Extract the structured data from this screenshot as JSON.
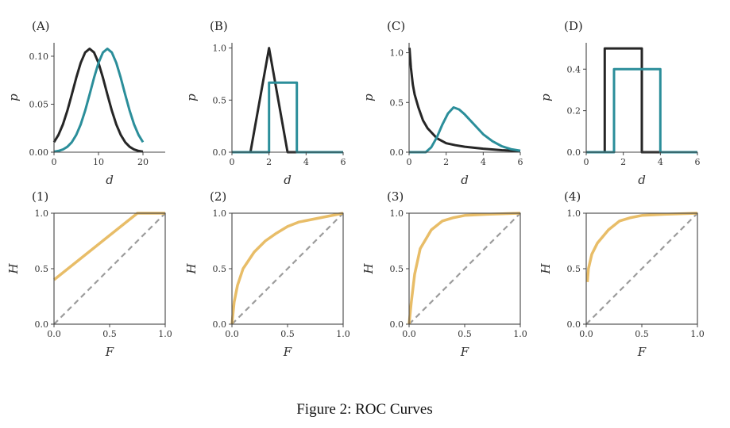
{
  "caption": "Figure 2: ROC Curves",
  "colors": {
    "noise": "#262626",
    "signal": "#2b8e9a",
    "roc": "#e5b658",
    "chance": "#9c9c9c"
  },
  "chart_data": [
    {
      "panel": "(A)",
      "type": "line",
      "xlabel": "d",
      "ylabel": "p",
      "xlim": [
        0,
        25
      ],
      "ylim": [
        0,
        0.114
      ],
      "xticks": [
        {
          "v": 0,
          "l": "0"
        },
        {
          "v": 10,
          "l": "10"
        },
        {
          "v": 20,
          "l": "20"
        }
      ],
      "yticks": [
        {
          "v": 0,
          "l": "0.00"
        },
        {
          "v": 0.05,
          "l": "0.05"
        },
        {
          "v": 0.1,
          "l": "0.10"
        }
      ],
      "series": [
        {
          "role": "noise",
          "points": [
            [
              0,
              0.0104
            ],
            [
              1,
              0.018
            ],
            [
              2,
              0.0289
            ],
            [
              3,
              0.0433
            ],
            [
              4,
              0.0601
            ],
            [
              5,
              0.0776
            ],
            [
              6,
              0.0931
            ],
            [
              7,
              0.1039
            ],
            [
              8,
              0.1078
            ],
            [
              9,
              0.1039
            ],
            [
              10,
              0.0931
            ],
            [
              11,
              0.0776
            ],
            [
              12,
              0.0601
            ],
            [
              13,
              0.0433
            ],
            [
              14,
              0.0289
            ],
            [
              15,
              0.018
            ],
            [
              16,
              0.0104
            ],
            [
              17,
              0.0056
            ],
            [
              18,
              0.0028
            ],
            [
              19,
              0.0013
            ],
            [
              20,
              0.0006
            ]
          ]
        },
        {
          "role": "signal",
          "points": [
            [
              0,
              0.0006
            ],
            [
              1,
              0.0013
            ],
            [
              2,
              0.0028
            ],
            [
              3,
              0.0056
            ],
            [
              4,
              0.0104
            ],
            [
              5,
              0.018
            ],
            [
              6,
              0.0289
            ],
            [
              7,
              0.0433
            ],
            [
              8,
              0.0601
            ],
            [
              9,
              0.0776
            ],
            [
              10,
              0.0931
            ],
            [
              11,
              0.1039
            ],
            [
              12,
              0.1078
            ],
            [
              13,
              0.1039
            ],
            [
              14,
              0.0931
            ],
            [
              15,
              0.0776
            ],
            [
              16,
              0.0601
            ],
            [
              17,
              0.0433
            ],
            [
              18,
              0.0289
            ],
            [
              19,
              0.018
            ],
            [
              20,
              0.0104
            ]
          ]
        }
      ]
    },
    {
      "panel": "(B)",
      "type": "line",
      "xlabel": "d",
      "ylabel": "p",
      "xlim": [
        0,
        6
      ],
      "ylim": [
        0,
        1.05
      ],
      "xticks": [
        {
          "v": 0,
          "l": "0"
        },
        {
          "v": 2,
          "l": "2"
        },
        {
          "v": 4,
          "l": "4"
        },
        {
          "v": 6,
          "l": "6"
        }
      ],
      "yticks": [
        {
          "v": 0,
          "l": "0.0"
        },
        {
          "v": 0.5,
          "l": "0.5"
        },
        {
          "v": 1,
          "l": "1.0"
        }
      ],
      "series": [
        {
          "role": "noise",
          "points": [
            [
              1,
              0
            ],
            [
              2,
              1
            ],
            [
              3,
              0
            ],
            [
              3.5,
              0
            ]
          ]
        },
        {
          "role": "signal",
          "points": [
            [
              0,
              0
            ],
            [
              2,
              0
            ],
            [
              2,
              0.667
            ],
            [
              3.5,
              0.667
            ],
            [
              3.5,
              0
            ],
            [
              6,
              0
            ]
          ]
        }
      ]
    },
    {
      "panel": "(C)",
      "type": "line",
      "xlabel": "d",
      "ylabel": "p",
      "xlim": [
        0,
        6
      ],
      "ylim": [
        0,
        1.1
      ],
      "xticks": [
        {
          "v": 0,
          "l": "0"
        },
        {
          "v": 2,
          "l": "2"
        },
        {
          "v": 4,
          "l": "4"
        },
        {
          "v": 6,
          "l": "6"
        }
      ],
      "yticks": [
        {
          "v": 0,
          "l": "0.0"
        },
        {
          "v": 0.5,
          "l": "0.5"
        },
        {
          "v": 1,
          "l": "1.0"
        }
      ],
      "series": [
        {
          "role": "noise",
          "points": [
            [
              0.02,
              1.05
            ],
            [
              0.1,
              0.85
            ],
            [
              0.2,
              0.68
            ],
            [
              0.3,
              0.58
            ],
            [
              0.5,
              0.45
            ],
            [
              0.75,
              0.32
            ],
            [
              1,
              0.24
            ],
            [
              1.5,
              0.14
            ],
            [
              2,
              0.09
            ],
            [
              2.5,
              0.07
            ],
            [
              3,
              0.055
            ],
            [
              4,
              0.035
            ],
            [
              5,
              0.02
            ],
            [
              6,
              0.012
            ]
          ]
        },
        {
          "role": "signal",
          "points": [
            [
              0,
              0
            ],
            [
              0.9,
              0
            ],
            [
              1.2,
              0.05
            ],
            [
              1.5,
              0.15
            ],
            [
              1.8,
              0.28
            ],
            [
              2.1,
              0.39
            ],
            [
              2.4,
              0.45
            ],
            [
              2.7,
              0.43
            ],
            [
              3,
              0.38
            ],
            [
              3.5,
              0.28
            ],
            [
              4,
              0.18
            ],
            [
              4.5,
              0.11
            ],
            [
              5,
              0.06
            ],
            [
              5.5,
              0.03
            ],
            [
              6,
              0.015
            ]
          ]
        }
      ]
    },
    {
      "panel": "(D)",
      "type": "line",
      "xlabel": "d",
      "ylabel": "p",
      "xlim": [
        0,
        6
      ],
      "ylim": [
        0,
        0.527
      ],
      "xticks": [
        {
          "v": 0,
          "l": "0"
        },
        {
          "v": 2,
          "l": "2"
        },
        {
          "v": 4,
          "l": "4"
        },
        {
          "v": 6,
          "l": "6"
        }
      ],
      "yticks": [
        {
          "v": 0,
          "l": "0.0"
        },
        {
          "v": 0.2,
          "l": "0.2"
        },
        {
          "v": 0.4,
          "l": "0.4"
        }
      ],
      "series": [
        {
          "role": "noise",
          "points": [
            [
              1,
              0
            ],
            [
              1,
              0.5
            ],
            [
              3,
              0.5
            ],
            [
              3,
              0
            ],
            [
              4,
              0
            ]
          ]
        },
        {
          "role": "signal",
          "points": [
            [
              0,
              0
            ],
            [
              1.5,
              0
            ],
            [
              1.5,
              0.4
            ],
            [
              4,
              0.4
            ],
            [
              4,
              0
            ],
            [
              6,
              0
            ]
          ]
        }
      ]
    },
    {
      "panel": "(1)",
      "type": "line",
      "xlabel": "F",
      "ylabel": "H",
      "xlim": [
        0,
        1
      ],
      "ylim": [
        0,
        1
      ],
      "box": true,
      "xticks": [
        {
          "v": 0,
          "l": "0.0"
        },
        {
          "v": 0.5,
          "l": "0.5"
        },
        {
          "v": 1,
          "l": "1.0"
        }
      ],
      "yticks": [
        {
          "v": 0,
          "l": "0.0"
        },
        {
          "v": 0.5,
          "l": "0.5"
        },
        {
          "v": 1,
          "l": "1.0"
        }
      ],
      "series": [
        {
          "role": "chance",
          "points": [
            [
              0,
              0
            ],
            [
              1,
              1
            ]
          ]
        },
        {
          "role": "roc",
          "points": [
            [
              0,
              0.4
            ],
            [
              0.75,
              1
            ],
            [
              1,
              1
            ]
          ]
        }
      ]
    },
    {
      "panel": "(2)",
      "type": "line",
      "xlabel": "F",
      "ylabel": "H",
      "xlim": [
        0,
        1
      ],
      "ylim": [
        0,
        1
      ],
      "box": true,
      "xticks": [
        {
          "v": 0,
          "l": "0.0"
        },
        {
          "v": 0.5,
          "l": "0.5"
        },
        {
          "v": 1,
          "l": "1.0"
        }
      ],
      "yticks": [
        {
          "v": 0,
          "l": "0.0"
        },
        {
          "v": 0.5,
          "l": "0.5"
        },
        {
          "v": 1,
          "l": "1.0"
        }
      ],
      "series": [
        {
          "role": "chance",
          "points": [
            [
              0,
              0
            ],
            [
              1,
              1
            ]
          ]
        },
        {
          "role": "roc",
          "points": [
            [
              0,
              0
            ],
            [
              0.02,
              0.2
            ],
            [
              0.05,
              0.35
            ],
            [
              0.1,
              0.5
            ],
            [
              0.2,
              0.65
            ],
            [
              0.3,
              0.75
            ],
            [
              0.4,
              0.82
            ],
            [
              0.5,
              0.88
            ],
            [
              0.6,
              0.92
            ],
            [
              0.8,
              0.96
            ],
            [
              1,
              1
            ]
          ]
        }
      ]
    },
    {
      "panel": "(3)",
      "type": "line",
      "xlabel": "F",
      "ylabel": "H",
      "xlim": [
        0,
        1
      ],
      "ylim": [
        0,
        1
      ],
      "box": true,
      "xticks": [
        {
          "v": 0,
          "l": "0.0"
        },
        {
          "v": 0.5,
          "l": "0.5"
        },
        {
          "v": 1,
          "l": "1.0"
        }
      ],
      "yticks": [
        {
          "v": 0,
          "l": "0.0"
        },
        {
          "v": 0.5,
          "l": "0.5"
        },
        {
          "v": 1,
          "l": "1.0"
        }
      ],
      "series": [
        {
          "role": "chance",
          "points": [
            [
              0,
              0
            ],
            [
              1,
              1
            ]
          ]
        },
        {
          "role": "roc",
          "points": [
            [
              0,
              0
            ],
            [
              0.02,
              0.2
            ],
            [
              0.05,
              0.45
            ],
            [
              0.1,
              0.68
            ],
            [
              0.2,
              0.85
            ],
            [
              0.3,
              0.93
            ],
            [
              0.4,
              0.96
            ],
            [
              0.5,
              0.98
            ],
            [
              0.7,
              0.99
            ],
            [
              1,
              1
            ]
          ]
        }
      ]
    },
    {
      "panel": "(4)",
      "type": "line",
      "xlabel": "F",
      "ylabel": "H",
      "xlim": [
        0,
        1
      ],
      "ylim": [
        0,
        1
      ],
      "box": true,
      "xticks": [
        {
          "v": 0,
          "l": "0.0"
        },
        {
          "v": 0.5,
          "l": "0.5"
        },
        {
          "v": 1,
          "l": "1.0"
        }
      ],
      "yticks": [
        {
          "v": 0,
          "l": "0.0"
        },
        {
          "v": 0.5,
          "l": "0.5"
        },
        {
          "v": 1,
          "l": "1.0"
        }
      ],
      "series": [
        {
          "role": "chance",
          "points": [
            [
              0,
              0
            ],
            [
              1,
              1
            ]
          ]
        },
        {
          "role": "roc",
          "points": [
            [
              0.01,
              0.38
            ],
            [
              0.02,
              0.5
            ],
            [
              0.05,
              0.63
            ],
            [
              0.1,
              0.73
            ],
            [
              0.2,
              0.85
            ],
            [
              0.3,
              0.93
            ],
            [
              0.4,
              0.96
            ],
            [
              0.5,
              0.98
            ],
            [
              0.7,
              0.99
            ],
            [
              1,
              1
            ]
          ]
        }
      ]
    }
  ]
}
